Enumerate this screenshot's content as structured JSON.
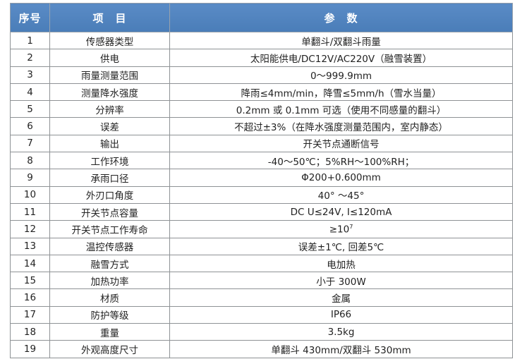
{
  "header": {
    "no": "序号",
    "item": "项　目",
    "param": "参　数"
  },
  "header_color": "#4f81bd",
  "rows": [
    {
      "no": "1",
      "item": "传感器类型",
      "param": "单翻斗/双翻斗雨量"
    },
    {
      "no": "2",
      "item": "供电",
      "param": "太阳能供电/DC12V/AC220V（融雪装置）"
    },
    {
      "no": "3",
      "item": "雨量测量范围",
      "param": "0～999.9mm"
    },
    {
      "no": "4",
      "item": "测量降水强度",
      "param": "降雨≤4mm/min，降雪≤5mm/h（雪水当量）"
    },
    {
      "no": "5",
      "item": "分辨率",
      "param": "0.2mm 或 0.1mm 可选（使用不同感量的翻斗）"
    },
    {
      "no": "6",
      "item": "误差",
      "param": "不超过±3%（在降水强度测量范围内，室内静态）"
    },
    {
      "no": "7",
      "item": "输出",
      "param": "开关节点通断信号"
    },
    {
      "no": "8",
      "item": "工作环境",
      "param": "-40～50℃；5%RH～100%RH；"
    },
    {
      "no": "9",
      "item": "承雨口径",
      "param": "Φ200+0.600mm"
    },
    {
      "no": "10",
      "item": "外刃口角度",
      "param": "40° ～45°"
    },
    {
      "no": "11",
      "item": "开关节点容量",
      "param": "DC U≤24V, I≤120mA"
    },
    {
      "no": "12",
      "item": "开关节点工作寿命",
      "param": "≥10",
      "sup": "7"
    },
    {
      "no": "13",
      "item": "温控传感器",
      "param": "误差±1℃, 回差5℃"
    },
    {
      "no": "14",
      "item": "融雪方式",
      "param": "电加热"
    },
    {
      "no": "15",
      "item": "加热功率",
      "param": "小于 300W"
    },
    {
      "no": "16",
      "item": "材质",
      "param": "金属"
    },
    {
      "no": "17",
      "item": "防护等级",
      "param": "IP66"
    },
    {
      "no": "18",
      "item": "重量",
      "param": "3.5kg"
    },
    {
      "no": "19",
      "item": "外观高度尺寸",
      "param": "单翻斗 430mm/双翻斗 530mm"
    }
  ]
}
